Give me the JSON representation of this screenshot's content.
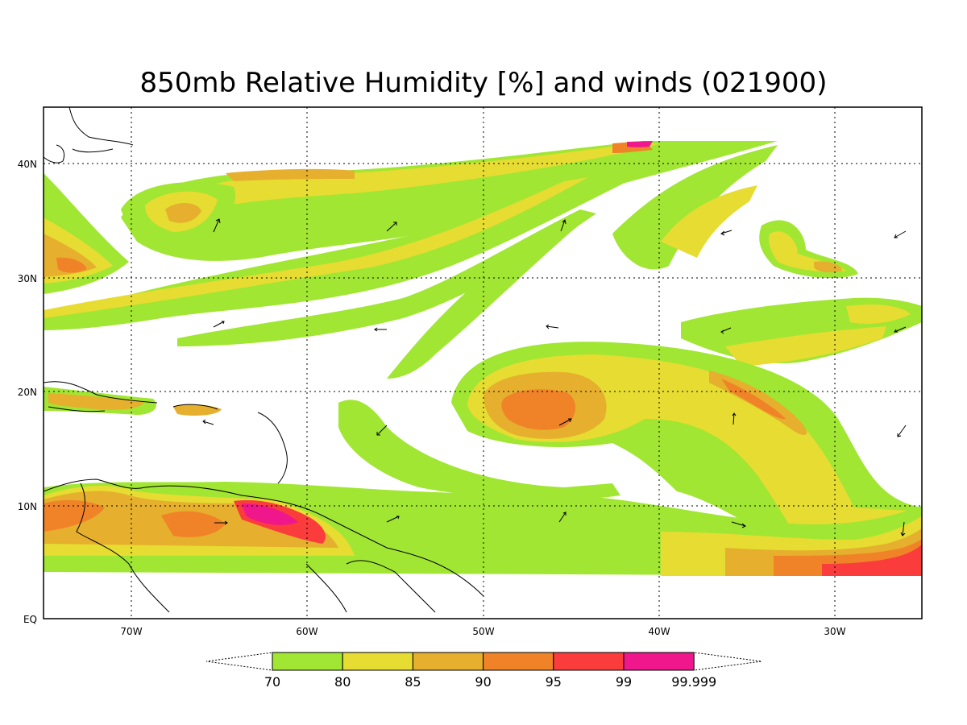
{
  "title": "850mb Relative Humidity [%] and winds (021900)",
  "lat_labels": [
    "40N",
    "30N",
    "20N",
    "10N",
    "EQ"
  ],
  "lon_labels": [
    "70W",
    "60W",
    "50W",
    "40W",
    "30W"
  ],
  "colorbar": {
    "colors": [
      "#a0e632",
      "#e6dc32",
      "#e6af2d",
      "#f08228",
      "#fa3c3c",
      "#f0168c"
    ],
    "labels": [
      "70",
      "80",
      "85",
      "90",
      "95",
      "99",
      "99.999"
    ]
  },
  "legend_colors": {
    "rh70": "#a0e632",
    "rh80": "#e6dc32",
    "rh85": "#e6af2d",
    "rh90": "#f08228",
    "rh95": "#fa3c3c",
    "rh99": "#f0168c"
  }
}
